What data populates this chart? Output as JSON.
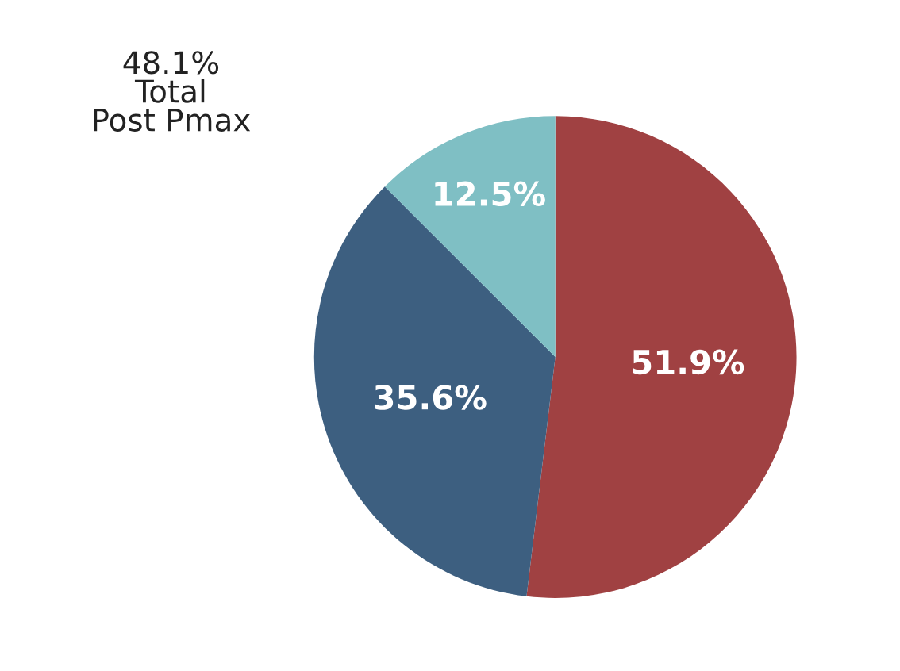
{
  "chart_data": {
    "type": "pie",
    "categories": [
      null,
      null,
      null
    ],
    "values": [
      51.9,
      35.6,
      12.5
    ],
    "colors": [
      "#a04142",
      "#3d5f80",
      "#7fbfc4"
    ],
    "value_labels": [
      "51.9%",
      "35.6%",
      "12.5%"
    ],
    "annotations": [
      "48.1%\nTotal\nPost Pmax"
    ]
  }
}
